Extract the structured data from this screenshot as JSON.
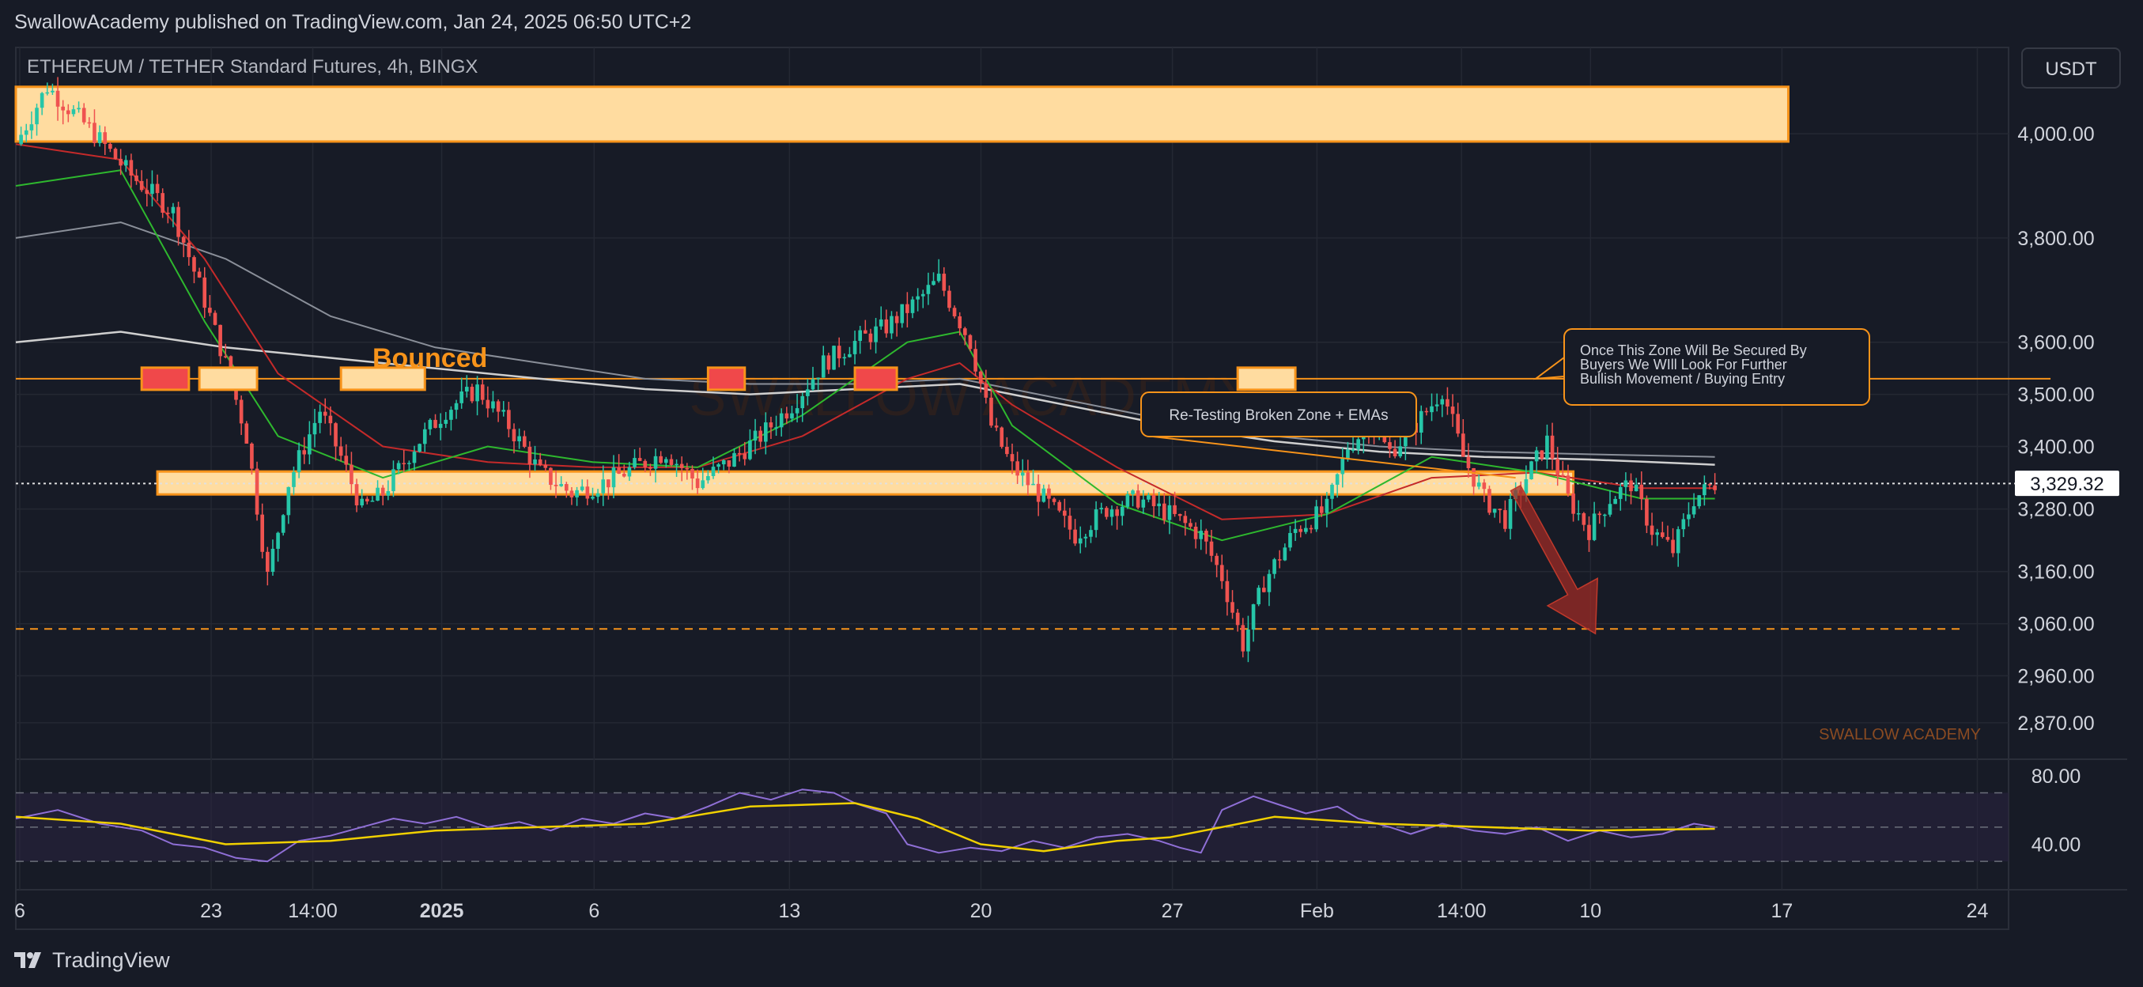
{
  "header": {
    "publisher": "SwallowAcademy published on TradingView.com, Jan 24, 2025 06:50 UTC+2",
    "symbol": "ETHEREUM / TETHER Standard Futures, 4h, BINGX",
    "currency": "USDT"
  },
  "footer": {
    "brand": "TradingView",
    "logo_icon": "tradingview-logo-icon"
  },
  "colors": {
    "background": "#171b26",
    "grid": "#242833",
    "up": "#26c6a8",
    "down": "#ef5350",
    "zone_fill": "#ffdca0",
    "zone_border": "#f7931a",
    "ema_fast": "#2eb82e",
    "ema_mid": "#c42a2a",
    "ema_slow": "#e8e8e8",
    "rsi": "#8f6fd6",
    "rsi_ma": "#f0d000",
    "target_arrow": "#9e2b25"
  },
  "chart_data": {
    "type": "candlestick",
    "timeframe": "4h",
    "y_range": [
      2800,
      4120
    ],
    "x_ticks": [
      "6",
      "23",
      "14:00",
      "2025",
      "6",
      "13",
      "20",
      "27",
      "Feb",
      "14:00",
      "10",
      "17",
      "24"
    ],
    "y_ticks": [
      4000,
      3800,
      3600,
      3500,
      3400,
      3280,
      3160,
      3060,
      2960,
      2870
    ],
    "y_tick_labels": [
      "4,000.00",
      "3,800.00",
      "3,600.00",
      "3,500.00",
      "3,400.00",
      "3,280.00",
      "3,160.00",
      "3,060.00",
      "2,960.00",
      "2,870.00"
    ],
    "last_price": 3329.32,
    "last_price_label": "3,329.32",
    "price_path_points": [
      [
        0,
        3980
      ],
      [
        6,
        4090
      ],
      [
        14,
        4010
      ],
      [
        22,
        3920
      ],
      [
        30,
        3850
      ],
      [
        36,
        3680
      ],
      [
        40,
        3560
      ],
      [
        44,
        3420
      ],
      [
        48,
        3150
      ],
      [
        52,
        3330
      ],
      [
        58,
        3470
      ],
      [
        62,
        3380
      ],
      [
        66,
        3280
      ],
      [
        70,
        3310
      ],
      [
        76,
        3400
      ],
      [
        82,
        3470
      ],
      [
        88,
        3510
      ],
      [
        94,
        3440
      ],
      [
        100,
        3350
      ],
      [
        106,
        3310
      ],
      [
        112,
        3330
      ],
      [
        118,
        3360
      ],
      [
        124,
        3390
      ],
      [
        130,
        3330
      ],
      [
        136,
        3370
      ],
      [
        142,
        3420
      ],
      [
        148,
        3480
      ],
      [
        154,
        3560
      ],
      [
        160,
        3600
      ],
      [
        166,
        3630
      ],
      [
        172,
        3680
      ],
      [
        176,
        3720
      ],
      [
        182,
        3600
      ],
      [
        186,
        3440
      ],
      [
        190,
        3360
      ],
      [
        196,
        3300
      ],
      [
        202,
        3230
      ],
      [
        208,
        3280
      ],
      [
        214,
        3300
      ],
      [
        220,
        3270
      ],
      [
        226,
        3230
      ],
      [
        230,
        3150
      ],
      [
        234,
        3020
      ],
      [
        238,
        3140
      ],
      [
        244,
        3240
      ],
      [
        250,
        3280
      ],
      [
        254,
        3400
      ],
      [
        258,
        3440
      ],
      [
        262,
        3390
      ],
      [
        266,
        3430
      ],
      [
        270,
        3480
      ],
      [
        272,
        3510
      ],
      [
        276,
        3380
      ],
      [
        280,
        3300
      ],
      [
        284,
        3260
      ],
      [
        288,
        3340
      ],
      [
        292,
        3410
      ],
      [
        296,
        3300
      ],
      [
        300,
        3240
      ],
      [
        304,
        3300
      ],
      [
        308,
        3330
      ],
      [
        312,
        3240
      ],
      [
        316,
        3200
      ],
      [
        320,
        3300
      ],
      [
        324,
        3329
      ]
    ],
    "price_path_note": "",
    "ema_fast": [
      [
        0,
        3900
      ],
      [
        20,
        3930
      ],
      [
        36,
        3640
      ],
      [
        50,
        3420
      ],
      [
        70,
        3340
      ],
      [
        90,
        3400
      ],
      [
        110,
        3370
      ],
      [
        130,
        3360
      ],
      [
        150,
        3460
      ],
      [
        170,
        3600
      ],
      [
        180,
        3620
      ],
      [
        190,
        3440
      ],
      [
        210,
        3290
      ],
      [
        230,
        3220
      ],
      [
        250,
        3270
      ],
      [
        270,
        3380
      ],
      [
        290,
        3350
      ],
      [
        310,
        3300
      ],
      [
        324,
        3300
      ]
    ],
    "ema_mid": [
      [
        0,
        3980
      ],
      [
        20,
        3950
      ],
      [
        36,
        3760
      ],
      [
        50,
        3540
      ],
      [
        70,
        3400
      ],
      [
        90,
        3370
      ],
      [
        110,
        3360
      ],
      [
        130,
        3360
      ],
      [
        150,
        3420
      ],
      [
        170,
        3530
      ],
      [
        180,
        3560
      ],
      [
        190,
        3480
      ],
      [
        210,
        3360
      ],
      [
        230,
        3260
      ],
      [
        250,
        3270
      ],
      [
        270,
        3340
      ],
      [
        290,
        3350
      ],
      [
        310,
        3320
      ],
      [
        324,
        3320
      ]
    ],
    "ema_slow": [
      [
        0,
        3800
      ],
      [
        20,
        3830
      ],
      [
        40,
        3760
      ],
      [
        60,
        3650
      ],
      [
        80,
        3590
      ],
      [
        100,
        3560
      ],
      [
        120,
        3530
      ],
      [
        140,
        3520
      ],
      [
        160,
        3520
      ],
      [
        180,
        3530
      ],
      [
        200,
        3490
      ],
      [
        220,
        3450
      ],
      [
        240,
        3420
      ],
      [
        260,
        3400
      ],
      [
        280,
        3390
      ],
      [
        300,
        3385
      ],
      [
        324,
        3380
      ]
    ],
    "ema_200": [
      [
        0,
        3600
      ],
      [
        20,
        3620
      ],
      [
        40,
        3590
      ],
      [
        60,
        3570
      ],
      [
        80,
        3550
      ],
      [
        100,
        3530
      ],
      [
        120,
        3510
      ],
      [
        140,
        3500
      ],
      [
        160,
        3510
      ],
      [
        180,
        3520
      ],
      [
        200,
        3480
      ],
      [
        220,
        3440
      ],
      [
        240,
        3410
      ],
      [
        260,
        3390
      ],
      [
        280,
        3380
      ],
      [
        300,
        3375
      ],
      [
        324,
        3365
      ]
    ],
    "zones": [
      {
        "name": "supply-zone",
        "y_top": 4090,
        "y_bottom": 3985,
        "x_start": 0,
        "x_end": 338
      },
      {
        "name": "broken-support-zone",
        "y_top": 3352,
        "y_bottom": 3308,
        "x_start": 27,
        "x_end": 297
      }
    ],
    "horizontal_lines": [
      {
        "name": "bounce-level-line",
        "y": 3530,
        "x_start": 0,
        "x_end": 388,
        "style": "solid"
      },
      {
        "name": "target-level-line",
        "y": 3050,
        "x_start": 0,
        "x_end": 371,
        "style": "dashed"
      },
      {
        "name": "last-price-line",
        "y": 3329,
        "x_start": 0,
        "x_end": 508,
        "style": "dotted"
      }
    ],
    "bounce_markers": [
      {
        "name": "bounce-marker-1",
        "x_start": 24,
        "x_end": 33,
        "kind": "red"
      },
      {
        "name": "bounce-marker-2",
        "x_start": 35,
        "x_end": 46,
        "kind": "light"
      },
      {
        "name": "bounce-marker-3",
        "x_start": 62,
        "x_end": 78,
        "kind": "light"
      },
      {
        "name": "bounce-marker-4",
        "x_start": 132,
        "x_end": 139,
        "kind": "red"
      },
      {
        "name": "bounce-marker-5",
        "x_start": 160,
        "x_end": 168,
        "kind": "red"
      },
      {
        "name": "bounce-marker-6",
        "x_start": 233,
        "x_end": 244,
        "kind": "light"
      }
    ],
    "projection_arrow": {
      "from": [
        286,
        3320
      ],
      "to": [
        300,
        3050
      ]
    },
    "annotations": {
      "bounced": "Bounced",
      "retest": "Re-Testing Broken Zone + EMAs",
      "secured": [
        "Once This Zone Will Be Secured By",
        "Buyers We WIll Look For Further",
        "Bullish Movement / Buying Entry"
      ],
      "watermark": "SWALLOW ACADEMY",
      "corner_watermark": "SWALLOW ACADEMY"
    },
    "rsi": {
      "y_range": [
        25,
        85
      ],
      "y_ticks": [
        80,
        40
      ],
      "y_tick_labels": [
        "80.00",
        "40.00"
      ],
      "band": [
        70,
        30
      ],
      "mid": 50,
      "series": [
        [
          0,
          55
        ],
        [
          8,
          60
        ],
        [
          16,
          52
        ],
        [
          24,
          48
        ],
        [
          30,
          40
        ],
        [
          36,
          38
        ],
        [
          42,
          32
        ],
        [
          48,
          30
        ],
        [
          54,
          42
        ],
        [
          60,
          45
        ],
        [
          66,
          50
        ],
        [
          72,
          55
        ],
        [
          78,
          52
        ],
        [
          84,
          56
        ],
        [
          90,
          50
        ],
        [
          96,
          53
        ],
        [
          102,
          48
        ],
        [
          108,
          55
        ],
        [
          114,
          52
        ],
        [
          120,
          58
        ],
        [
          126,
          55
        ],
        [
          132,
          62
        ],
        [
          138,
          70
        ],
        [
          144,
          66
        ],
        [
          150,
          72
        ],
        [
          156,
          70
        ],
        [
          160,
          64
        ],
        [
          166,
          58
        ],
        [
          170,
          40
        ],
        [
          176,
          35
        ],
        [
          182,
          38
        ],
        [
          188,
          36
        ],
        [
          194,
          42
        ],
        [
          200,
          38
        ],
        [
          206,
          44
        ],
        [
          212,
          46
        ],
        [
          218,
          42
        ],
        [
          222,
          38
        ],
        [
          226,
          35
        ],
        [
          230,
          60
        ],
        [
          236,
          68
        ],
        [
          240,
          64
        ],
        [
          246,
          58
        ],
        [
          252,
          62
        ],
        [
          256,
          55
        ],
        [
          262,
          50
        ],
        [
          266,
          46
        ],
        [
          272,
          52
        ],
        [
          278,
          48
        ],
        [
          284,
          46
        ],
        [
          290,
          50
        ],
        [
          296,
          42
        ],
        [
          302,
          48
        ],
        [
          308,
          44
        ],
        [
          314,
          46
        ],
        [
          320,
          52
        ],
        [
          324,
          50
        ]
      ],
      "ma": [
        [
          0,
          56
        ],
        [
          20,
          52
        ],
        [
          40,
          40
        ],
        [
          60,
          42
        ],
        [
          80,
          48
        ],
        [
          100,
          50
        ],
        [
          120,
          52
        ],
        [
          140,
          62
        ],
        [
          160,
          64
        ],
        [
          172,
          55
        ],
        [
          184,
          40
        ],
        [
          196,
          36
        ],
        [
          210,
          42
        ],
        [
          220,
          44
        ],
        [
          240,
          56
        ],
        [
          260,
          52
        ],
        [
          280,
          50
        ],
        [
          300,
          48
        ],
        [
          324,
          49
        ]
      ]
    }
  }
}
